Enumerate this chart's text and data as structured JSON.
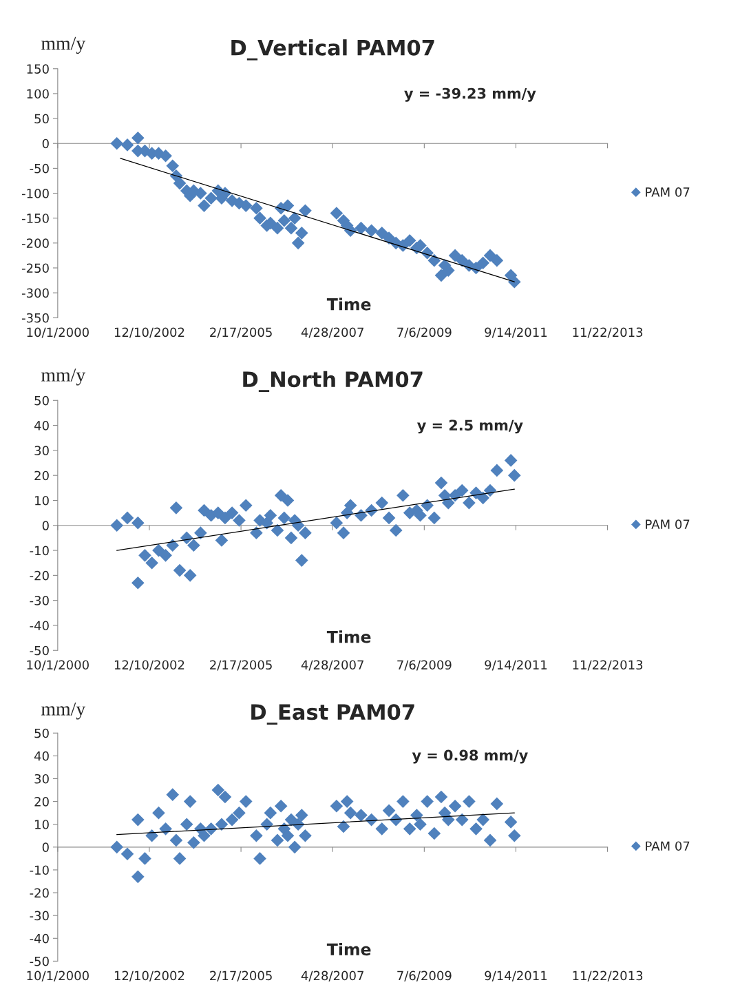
{
  "chart_data": [
    {
      "type": "scatter",
      "title": "D_Vertical PAM07",
      "xlabel": "Time",
      "ylabel": "mm/y",
      "annotations": [
        "y = -39.23 mm/y"
      ],
      "marker": "diamond",
      "legend": "right",
      "xlim": [
        "2000-10-01",
        "2013-11-22"
      ],
      "xticks": [
        {
          "value": "2000-10-01",
          "label": "10/1/2000"
        },
        {
          "value": "2002-12-10",
          "label": "12/10/2002"
        },
        {
          "value": "2005-02-17",
          "label": "2/17/2005"
        },
        {
          "value": "2007-04-28",
          "label": "4/28/2007"
        },
        {
          "value": "2009-07-06",
          "label": "7/6/2009"
        },
        {
          "value": "2011-09-14",
          "label": "9/14/2011"
        },
        {
          "value": "2013-11-22",
          "label": "11/22/2013"
        }
      ],
      "ylim": [
        -350,
        150
      ],
      "yticks": [
        150,
        100,
        50,
        0,
        -50,
        -100,
        -150,
        -200,
        -250,
        -300,
        -350
      ],
      "x": [
        "2002-03",
        "2002-06",
        "2002-09",
        "2002-09",
        "2002-11",
        "2003-01",
        "2003-03",
        "2003-05",
        "2003-07",
        "2003-08",
        "2003-09",
        "2003-11",
        "2003-12",
        "2004-01",
        "2004-03",
        "2004-04",
        "2004-06",
        "2004-08",
        "2004-09",
        "2004-10",
        "2004-12",
        "2005-02",
        "2005-04",
        "2005-07",
        "2005-08",
        "2005-10",
        "2005-11",
        "2006-01",
        "2006-02",
        "2006-03",
        "2006-04",
        "2006-05",
        "2006-06",
        "2006-07",
        "2006-08",
        "2006-09",
        "2007-06",
        "2007-08",
        "2007-09",
        "2007-10",
        "2008-01",
        "2008-04",
        "2008-07",
        "2008-09",
        "2008-11",
        "2009-01",
        "2009-03",
        "2009-05",
        "2009-06",
        "2009-08",
        "2009-10",
        "2009-12",
        "2010-01",
        "2010-02",
        "2010-04",
        "2010-06",
        "2010-08",
        "2010-10",
        "2010-12",
        "2011-02",
        "2011-04",
        "2011-08",
        "2011-09"
      ],
      "series": [
        {
          "name": "PAM 07",
          "color": "#4f81bd",
          "values": [
            0,
            -3,
            11,
            -15,
            -15,
            -20,
            -20,
            -25,
            -45,
            -65,
            -80,
            -95,
            -105,
            -95,
            -100,
            -125,
            -110,
            -95,
            -110,
            -100,
            -115,
            -120,
            -125,
            -130,
            -150,
            -165,
            -160,
            -170,
            -130,
            -155,
            -125,
            -170,
            -150,
            -200,
            -180,
            -135,
            -140,
            -155,
            -165,
            -175,
            -170,
            -175,
            -180,
            -190,
            -200,
            -205,
            -195,
            -210,
            -205,
            -220,
            -235,
            -265,
            -245,
            -255,
            -225,
            -235,
            -245,
            -250,
            -240,
            -225,
            -235,
            -265,
            -278
          ]
        },
        {
          "type": "line",
          "color": "#000000",
          "marker": "none",
          "x": [
            "2002-04",
            "2011-09"
          ],
          "values": [
            -30,
            -278
          ]
        }
      ]
    },
    {
      "type": "scatter",
      "title": "D_North PAM07",
      "xlabel": "Time",
      "ylabel": "mm/y",
      "annotations": [
        "y = 2.5 mm/y"
      ],
      "marker": "diamond",
      "legend": "right",
      "xlim": [
        "2000-10-01",
        "2013-11-22"
      ],
      "xticks": [
        {
          "value": "2000-10-01",
          "label": "10/1/2000"
        },
        {
          "value": "2002-12-10",
          "label": "12/10/2002"
        },
        {
          "value": "2005-02-17",
          "label": "2/17/2005"
        },
        {
          "value": "2007-04-28",
          "label": "4/28/2007"
        },
        {
          "value": "2009-07-06",
          "label": "7/6/2009"
        },
        {
          "value": "2011-09-14",
          "label": "9/14/2011"
        },
        {
          "value": "2013-11-22",
          "label": "11/22/2013"
        }
      ],
      "ylim": [
        -50,
        50
      ],
      "yticks": [
        50,
        40,
        30,
        20,
        10,
        0,
        -10,
        -20,
        -30,
        -40,
        -50
      ],
      "x": [
        "2002-03",
        "2002-06",
        "2002-09",
        "2002-09",
        "2002-11",
        "2003-01",
        "2003-03",
        "2003-05",
        "2003-07",
        "2003-08",
        "2003-09",
        "2003-11",
        "2003-12",
        "2004-01",
        "2004-03",
        "2004-04",
        "2004-06",
        "2004-08",
        "2004-09",
        "2004-10",
        "2004-12",
        "2005-02",
        "2005-04",
        "2005-07",
        "2005-08",
        "2005-10",
        "2005-11",
        "2006-01",
        "2006-02",
        "2006-03",
        "2006-04",
        "2006-05",
        "2006-06",
        "2006-07",
        "2006-08",
        "2006-09",
        "2007-06",
        "2007-08",
        "2007-09",
        "2007-10",
        "2008-01",
        "2008-04",
        "2008-07",
        "2008-09",
        "2008-11",
        "2009-01",
        "2009-03",
        "2009-05",
        "2009-06",
        "2009-08",
        "2009-10",
        "2009-12",
        "2010-01",
        "2010-02",
        "2010-04",
        "2010-06",
        "2010-08",
        "2010-10",
        "2010-12",
        "2011-02",
        "2011-04",
        "2011-08",
        "2011-09"
      ],
      "series": [
        {
          "name": "PAM 07",
          "color": "#4f81bd",
          "values": [
            0,
            3,
            1,
            -23,
            -12,
            -15,
            -10,
            -12,
            -8,
            7,
            -18,
            -5,
            -20,
            -8,
            -3,
            6,
            4,
            5,
            -6,
            3,
            5,
            2,
            8,
            -3,
            2,
            1,
            4,
            -2,
            12,
            3,
            10,
            -5,
            2,
            0,
            -14,
            -3,
            1,
            -3,
            5,
            8,
            4,
            6,
            9,
            3,
            -2,
            12,
            5,
            6,
            4,
            8,
            3,
            17,
            12,
            9,
            12,
            14,
            9,
            13,
            11,
            14,
            22,
            26,
            20
          ]
        },
        {
          "type": "line",
          "color": "#000000",
          "marker": "none",
          "x": [
            "2002-03",
            "2011-09"
          ],
          "values": [
            -10,
            14.5
          ]
        }
      ]
    },
    {
      "type": "scatter",
      "title": "D_East PAM07",
      "xlabel": "Time",
      "ylabel": "mm/y",
      "annotations": [
        "y = 0.98 mm/y"
      ],
      "marker": "diamond",
      "legend": "right",
      "xlim": [
        "2000-10-01",
        "2013-11-22"
      ],
      "xticks": [
        {
          "value": "2000-10-01",
          "label": "10/1/2000"
        },
        {
          "value": "2002-12-10",
          "label": "12/10/2002"
        },
        {
          "value": "2005-02-17",
          "label": "2/17/2005"
        },
        {
          "value": "2007-04-28",
          "label": "4/28/2007"
        },
        {
          "value": "2009-07-06",
          "label": "7/6/2009"
        },
        {
          "value": "2011-09-14",
          "label": "9/14/2011"
        },
        {
          "value": "2013-11-22",
          "label": "11/22/2013"
        }
      ],
      "ylim": [
        -50,
        50
      ],
      "yticks": [
        50,
        40,
        30,
        20,
        10,
        0,
        -10,
        -20,
        -30,
        -40,
        -50
      ],
      "x": [
        "2002-03",
        "2002-06",
        "2002-09",
        "2002-09",
        "2002-11",
        "2003-01",
        "2003-03",
        "2003-05",
        "2003-07",
        "2003-08",
        "2003-09",
        "2003-11",
        "2003-12",
        "2004-01",
        "2004-03",
        "2004-04",
        "2004-06",
        "2004-08",
        "2004-09",
        "2004-10",
        "2004-12",
        "2005-02",
        "2005-04",
        "2005-07",
        "2005-08",
        "2005-10",
        "2005-11",
        "2006-01",
        "2006-02",
        "2006-03",
        "2006-04",
        "2006-05",
        "2006-06",
        "2006-07",
        "2006-08",
        "2006-09",
        "2007-06",
        "2007-08",
        "2007-09",
        "2007-10",
        "2008-01",
        "2008-04",
        "2008-07",
        "2008-09",
        "2008-11",
        "2009-01",
        "2009-03",
        "2009-05",
        "2009-06",
        "2009-08",
        "2009-10",
        "2009-12",
        "2010-01",
        "2010-02",
        "2010-04",
        "2010-06",
        "2010-08",
        "2010-10",
        "2010-12",
        "2011-02",
        "2011-04",
        "2011-08",
        "2011-09"
      ],
      "series": [
        {
          "name": "PAM 07",
          "color": "#4f81bd",
          "values": [
            0,
            -3,
            12,
            -13,
            -5,
            5,
            15,
            8,
            23,
            3,
            -5,
            10,
            20,
            2,
            8,
            5,
            8,
            25,
            10,
            22,
            12,
            15,
            20,
            5,
            -5,
            10,
            15,
            3,
            18,
            8,
            5,
            12,
            0,
            10,
            14,
            5,
            18,
            9,
            20,
            15,
            14,
            12,
            8,
            16,
            12,
            20,
            8,
            14,
            10,
            20,
            6,
            22,
            15,
            12,
            18,
            12,
            20,
            8,
            12,
            3,
            19,
            11,
            5
          ]
        },
        {
          "type": "line",
          "color": "#000000",
          "marker": "none",
          "x": [
            "2002-03",
            "2011-09"
          ],
          "values": [
            5.5,
            15
          ]
        }
      ]
    }
  ]
}
